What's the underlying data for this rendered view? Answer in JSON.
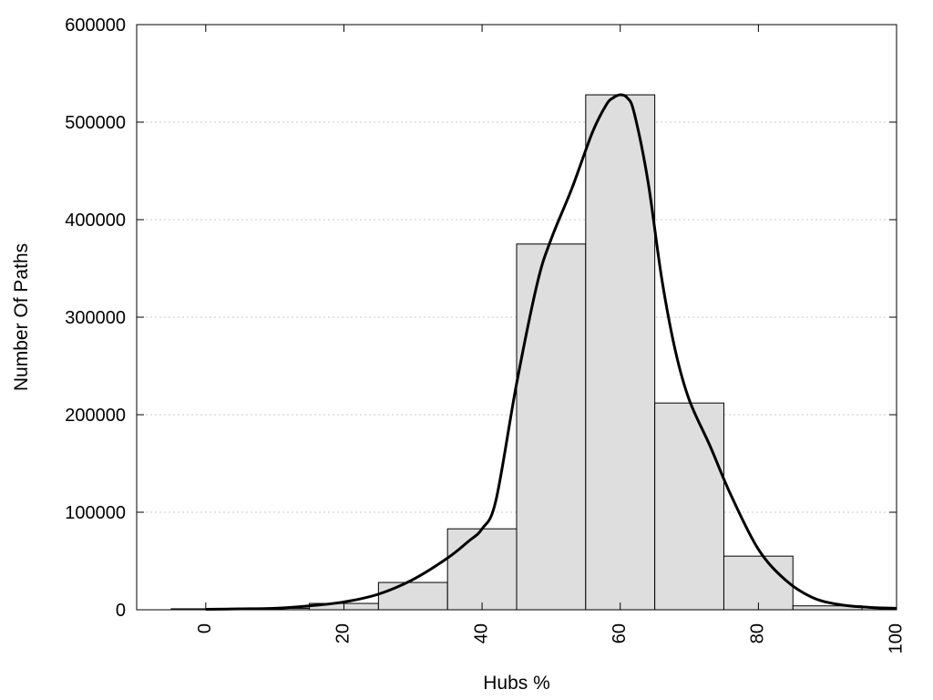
{
  "chart_data": {
    "type": "bar",
    "title": "",
    "xlabel": "Hubs %",
    "ylabel": "Number Of Paths",
    "xlim": [
      -10,
      100
    ],
    "ylim": [
      0,
      600000
    ],
    "xticks": [
      0,
      20,
      40,
      60,
      80,
      100
    ],
    "yticks": [
      0,
      100000,
      200000,
      300000,
      400000,
      500000,
      600000
    ],
    "grid": "horizontal-dotted",
    "bin_width": 10,
    "bars": [
      {
        "x": 0,
        "value": 1000
      },
      {
        "x": 10,
        "value": 1500
      },
      {
        "x": 20,
        "value": 6500
      },
      {
        "x": 30,
        "value": 28000
      },
      {
        "x": 40,
        "value": 83000
      },
      {
        "x": 50,
        "value": 375000
      },
      {
        "x": 60,
        "value": 528000
      },
      {
        "x": 70,
        "value": 212000
      },
      {
        "x": 80,
        "value": 55000
      },
      {
        "x": 90,
        "value": 4000
      }
    ],
    "density_curve": {
      "x": [
        0,
        5,
        10,
        15,
        20,
        25,
        30,
        35,
        38,
        40,
        42,
        45,
        48,
        50,
        53,
        56,
        58,
        59,
        60,
        61,
        62,
        64,
        66,
        68,
        70,
        73,
        76,
        80,
        84,
        88,
        92,
        96,
        100
      ],
      "y": [
        500,
        900,
        1500,
        4000,
        8000,
        16000,
        31000,
        53000,
        70000,
        83000,
        112000,
        232000,
        335000,
        380000,
        432000,
        490000,
        518000,
        525000,
        528000,
        525000,
        510000,
        440000,
        340000,
        265000,
        215000,
        168000,
        118000,
        62000,
        30000,
        12000,
        5000,
        2500,
        1500
      ]
    }
  }
}
